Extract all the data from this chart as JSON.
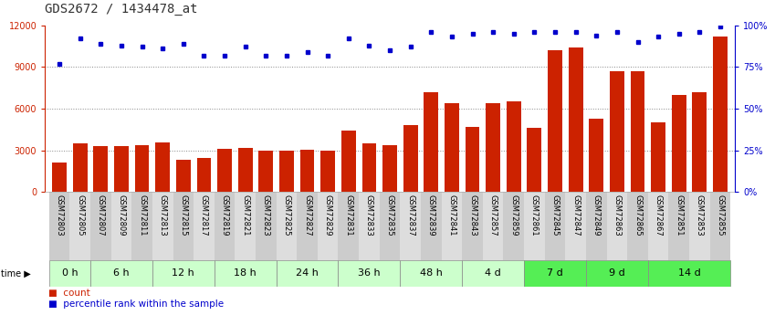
{
  "title": "GDS2672 / 1434478_at",
  "samples": [
    "GSM72803",
    "GSM72805",
    "GSM72807",
    "GSM72809",
    "GSM72811",
    "GSM72813",
    "GSM72815",
    "GSM72817",
    "GSM72819",
    "GSM72821",
    "GSM72823",
    "GSM72825",
    "GSM72827",
    "GSM72829",
    "GSM72831",
    "GSM72833",
    "GSM72835",
    "GSM72837",
    "GSM72839",
    "GSM72841",
    "GSM72843",
    "GSM72857",
    "GSM72859",
    "GSM72861",
    "GSM72845",
    "GSM72847",
    "GSM72849",
    "GSM72863",
    "GSM72865",
    "GSM72867",
    "GSM72851",
    "GSM72853",
    "GSM72855"
  ],
  "counts": [
    2100,
    3500,
    3300,
    3300,
    3350,
    3600,
    2300,
    2450,
    3100,
    3200,
    2950,
    3000,
    3050,
    2950,
    4400,
    3500,
    3350,
    4800,
    7200,
    6400,
    4700,
    6400,
    6500,
    4600,
    10200,
    10400,
    5300,
    8700,
    8700,
    5000,
    7000,
    7200,
    11200
  ],
  "percentiles": [
    77,
    92,
    89,
    88,
    87,
    86,
    89,
    82,
    82,
    87,
    82,
    82,
    84,
    82,
    92,
    88,
    85,
    87,
    96,
    93,
    95,
    96,
    95,
    96,
    96,
    96,
    94,
    96,
    90,
    93,
    95,
    96,
    99
  ],
  "time_groups": [
    {
      "label": "0 h",
      "start": 0,
      "end": 2,
      "color": "#ccffcc"
    },
    {
      "label": "6 h",
      "start": 2,
      "end": 5,
      "color": "#ccffcc"
    },
    {
      "label": "12 h",
      "start": 5,
      "end": 8,
      "color": "#ccffcc"
    },
    {
      "label": "18 h",
      "start": 8,
      "end": 11,
      "color": "#ccffcc"
    },
    {
      "label": "24 h",
      "start": 11,
      "end": 14,
      "color": "#ccffcc"
    },
    {
      "label": "36 h",
      "start": 14,
      "end": 17,
      "color": "#ccffcc"
    },
    {
      "label": "48 h",
      "start": 17,
      "end": 20,
      "color": "#ccffcc"
    },
    {
      "label": "4 d",
      "start": 20,
      "end": 23,
      "color": "#ccffcc"
    },
    {
      "label": "7 d",
      "start": 23,
      "end": 26,
      "color": "#55ee55"
    },
    {
      "label": "9 d",
      "start": 26,
      "end": 29,
      "color": "#55ee55"
    },
    {
      "label": "14 d",
      "start": 29,
      "end": 33,
      "color": "#55ee55"
    }
  ],
  "bar_color": "#cc2200",
  "dot_color": "#0000cc",
  "ylim_left": [
    0,
    12000
  ],
  "ylim_right": [
    0,
    100
  ],
  "yticks_left": [
    0,
    3000,
    6000,
    9000,
    12000
  ],
  "yticks_right": [
    0,
    25,
    50,
    75,
    100
  ],
  "grid_vals": [
    3000,
    6000,
    9000
  ],
  "grid_color": "#888888",
  "bg_color": "#ffffff",
  "title_fontsize": 10,
  "sample_fontsize": 6,
  "tick_fontsize": 7,
  "time_fontsize": 8
}
